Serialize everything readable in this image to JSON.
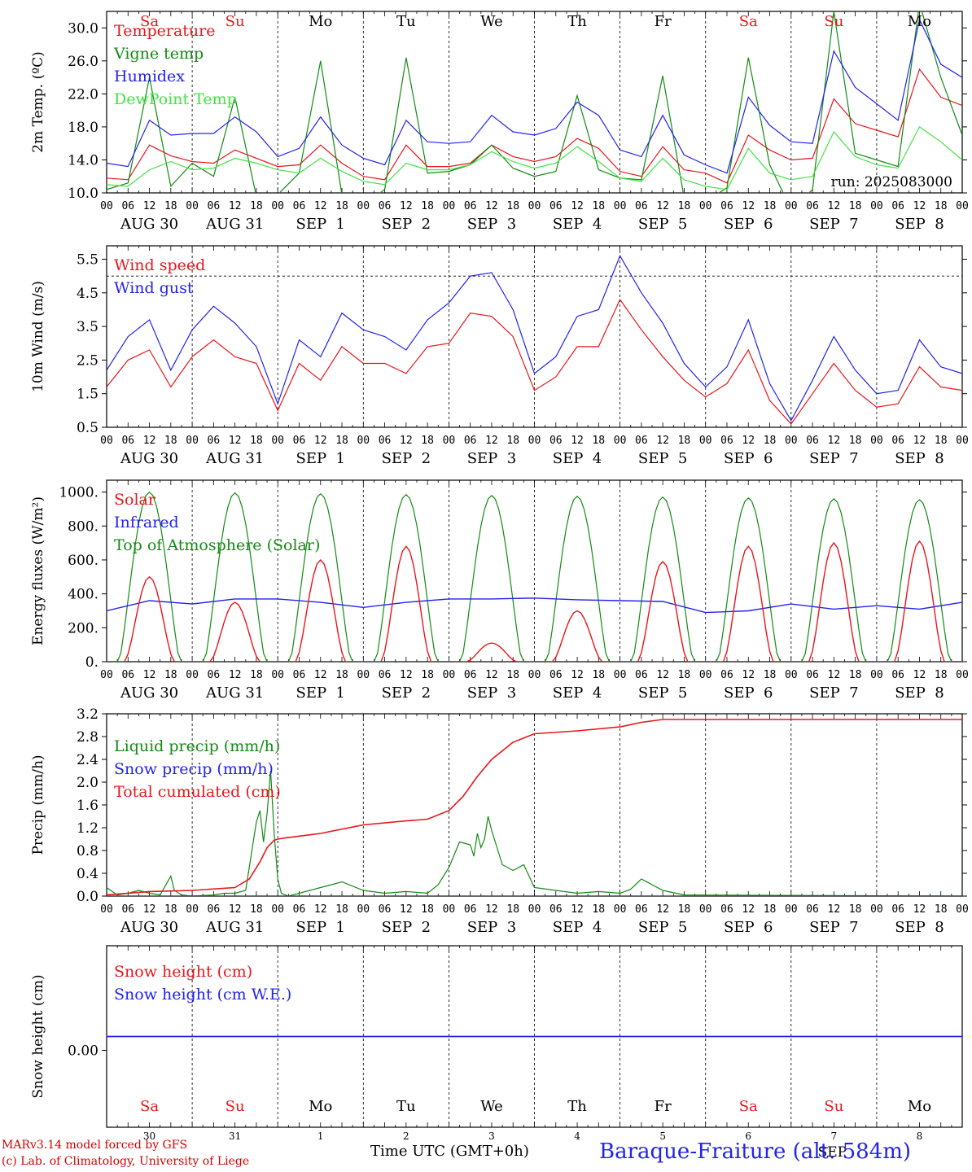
{
  "chart_data": [
    {
      "type": "line",
      "ylabel": "2m Temp. (ºC)",
      "ylim": [
        10,
        32
      ],
      "yticks": [
        "10.0",
        "14.0",
        "18.0",
        "22.0",
        "26.0",
        "30.0"
      ],
      "run_label": "run: 2025083000",
      "weekdays": [
        {
          "label": "Sa",
          "color": "#e8161b"
        },
        {
          "label": "Su",
          "color": "#e8161b"
        },
        {
          "label": "Mo",
          "color": "#000000"
        },
        {
          "label": "Tu",
          "color": "#000000"
        },
        {
          "label": "We",
          "color": "#000000"
        },
        {
          "label": "Th",
          "color": "#000000"
        },
        {
          "label": "Fr",
          "color": "#000000"
        },
        {
          "label": "Sa",
          "color": "#e8161b"
        },
        {
          "label": "Su",
          "color": "#e8161b"
        },
        {
          "label": "Mo",
          "color": "#000000"
        }
      ],
      "series": [
        {
          "name": "Temperature",
          "color": "#e8161b",
          "x": [
            0,
            6,
            12,
            18,
            24,
            30,
            36,
            42,
            48,
            54,
            60,
            66,
            72,
            78,
            84,
            90,
            96,
            102,
            108,
            114,
            120,
            126,
            132,
            138,
            144,
            150,
            156,
            162,
            168,
            174,
            180,
            186,
            192,
            198,
            204,
            210,
            216,
            222,
            228,
            234,
            240
          ],
          "values": [
            11.8,
            11.6,
            15.8,
            14.5,
            13.8,
            13.6,
            15.2,
            14.2,
            13.2,
            13.4,
            15.8,
            13.6,
            12.0,
            11.6,
            15.8,
            13.2,
            13.2,
            13.6,
            15.8,
            14.4,
            13.8,
            14.4,
            16.6,
            15.4,
            12.6,
            12.0,
            15.6,
            12.8,
            12.4,
            11.2,
            17.0,
            15.2,
            14.0,
            14.2,
            21.4,
            18.4,
            17.6,
            16.8,
            25.0,
            21.6,
            20.6
          ]
        },
        {
          "name": "Vigne temp",
          "color": "#138a13",
          "x": [
            0,
            6,
            12,
            18,
            24,
            30,
            36,
            42,
            48,
            54,
            60,
            66,
            72,
            78,
            84,
            90,
            96,
            102,
            108,
            114,
            120,
            126,
            132,
            138,
            144,
            150,
            156,
            162,
            168,
            174,
            180,
            186,
            192,
            198,
            204,
            210,
            216,
            222,
            228,
            234,
            240
          ],
          "values": [
            10.4,
            11.2,
            24.0,
            10.8,
            13.6,
            12.0,
            21.6,
            9.6,
            9.8,
            12.4,
            26.0,
            9.8,
            8.6,
            10.4,
            26.4,
            12.4,
            12.6,
            13.4,
            15.8,
            13.0,
            12.0,
            12.6,
            21.8,
            12.8,
            11.8,
            11.6,
            24.2,
            9.4,
            9.0,
            10.6,
            26.4,
            13.4,
            8.0,
            10.4,
            32.0,
            14.8,
            14.0,
            13.2,
            33.0,
            24.0,
            17.0
          ]
        },
        {
          "name": "Humidex",
          "color": "#2323ee",
          "x": [
            0,
            6,
            12,
            18,
            24,
            30,
            36,
            42,
            48,
            54,
            60,
            66,
            72,
            78,
            84,
            90,
            96,
            102,
            108,
            114,
            120,
            126,
            132,
            138,
            144,
            150,
            156,
            162,
            168,
            174,
            180,
            186,
            192,
            198,
            204,
            210,
            216,
            222,
            228,
            234,
            240
          ],
          "values": [
            13.6,
            13.2,
            18.8,
            17.0,
            17.2,
            17.2,
            19.2,
            17.4,
            14.4,
            15.4,
            19.2,
            15.8,
            14.2,
            13.4,
            18.8,
            16.2,
            16.0,
            16.2,
            19.4,
            17.4,
            17.0,
            17.8,
            21.0,
            19.4,
            15.2,
            14.4,
            19.4,
            14.6,
            13.4,
            12.4,
            21.6,
            18.2,
            16.2,
            16.0,
            27.2,
            22.8,
            20.8,
            18.8,
            31.0,
            25.6,
            24.0
          ]
        },
        {
          "name": "DewPoint Temp",
          "color": "#42e342",
          "x": [
            0,
            6,
            12,
            18,
            24,
            30,
            36,
            42,
            48,
            54,
            60,
            66,
            72,
            78,
            84,
            90,
            96,
            102,
            108,
            114,
            120,
            126,
            132,
            138,
            144,
            150,
            156,
            162,
            168,
            174,
            180,
            186,
            192,
            198,
            204,
            210,
            216,
            222,
            228,
            234,
            240
          ],
          "values": [
            11.0,
            10.8,
            12.8,
            13.8,
            12.8,
            13.0,
            14.2,
            13.6,
            12.8,
            12.4,
            14.2,
            12.6,
            11.4,
            11.0,
            13.6,
            12.8,
            12.8,
            13.4,
            15.0,
            13.8,
            13.0,
            13.6,
            15.6,
            13.8,
            11.8,
            11.4,
            14.2,
            11.6,
            10.8,
            10.4,
            15.4,
            12.4,
            11.6,
            12.0,
            17.4,
            14.4,
            13.4,
            13.0,
            18.0,
            16.2,
            14.0
          ]
        }
      ]
    },
    {
      "type": "line",
      "ylabel": "10m Wind (m/s)",
      "ylim": [
        0.5,
        5.9
      ],
      "yticks": [
        "0.5",
        "1.5",
        "2.5",
        "3.5",
        "4.5",
        "5.5"
      ],
      "ref_y": 5.0,
      "series": [
        {
          "name": "Wind speed",
          "color": "#e8161b",
          "x": [
            0,
            6,
            12,
            18,
            24,
            30,
            36,
            42,
            48,
            54,
            60,
            66,
            72,
            78,
            84,
            90,
            96,
            102,
            108,
            114,
            120,
            126,
            132,
            138,
            144,
            150,
            156,
            162,
            168,
            174,
            180,
            186,
            192,
            198,
            204,
            210,
            216,
            222,
            228,
            234,
            240
          ],
          "values": [
            1.7,
            2.5,
            2.8,
            1.7,
            2.6,
            3.1,
            2.6,
            2.4,
            1.0,
            2.4,
            1.9,
            2.9,
            2.4,
            2.4,
            2.1,
            2.9,
            3.0,
            3.9,
            3.8,
            3.2,
            1.6,
            2.0,
            2.9,
            2.9,
            4.3,
            3.4,
            2.6,
            1.9,
            1.4,
            1.8,
            2.8,
            1.3,
            0.6,
            1.5,
            2.4,
            1.6,
            1.1,
            1.2,
            2.3,
            1.7,
            1.6
          ]
        },
        {
          "name": "Wind gust",
          "color": "#2323ee",
          "x": [
            0,
            6,
            12,
            18,
            24,
            30,
            36,
            42,
            48,
            54,
            60,
            66,
            72,
            78,
            84,
            90,
            96,
            102,
            108,
            114,
            120,
            126,
            132,
            138,
            144,
            150,
            156,
            162,
            168,
            174,
            180,
            186,
            192,
            198,
            204,
            210,
            216,
            222,
            228,
            234,
            240
          ],
          "values": [
            2.2,
            3.2,
            3.7,
            2.2,
            3.4,
            4.1,
            3.6,
            2.9,
            1.2,
            3.1,
            2.6,
            3.9,
            3.4,
            3.2,
            2.8,
            3.7,
            4.2,
            5.0,
            5.1,
            4.0,
            2.1,
            2.6,
            3.8,
            4.0,
            5.6,
            4.5,
            3.6,
            2.4,
            1.7,
            2.3,
            3.7,
            1.8,
            0.7,
            1.9,
            3.2,
            2.2,
            1.5,
            1.6,
            3.1,
            2.3,
            2.1
          ]
        }
      ]
    },
    {
      "type": "line",
      "ylabel": "Energy fluxes (W/m²)",
      "ylim": [
        0,
        1070
      ],
      "yticks": [
        "0.",
        "200.",
        "400.",
        "600.",
        "800.",
        "1000."
      ],
      "series": [
        {
          "name": "Solar",
          "color": "#e8161b"
        },
        {
          "name": "Infrared",
          "color": "#2323ee"
        },
        {
          "name": "Top of Atmosphere (Solar)",
          "color": "#138a13"
        }
      ],
      "solar_day_peaks": [
        500,
        350,
        600,
        680,
        110,
        300,
        590,
        680,
        700,
        710
      ],
      "toa_day_peaks": [
        1000,
        995,
        990,
        985,
        980,
        975,
        970,
        965,
        960,
        955
      ],
      "infrared_x": [
        0,
        12,
        24,
        36,
        48,
        60,
        72,
        84,
        96,
        108,
        120,
        132,
        144,
        156,
        168,
        180,
        192,
        204,
        216,
        228,
        240
      ],
      "infrared_values": [
        300,
        360,
        340,
        370,
        370,
        350,
        320,
        350,
        370,
        370,
        375,
        365,
        360,
        355,
        290,
        300,
        340,
        310,
        330,
        310,
        350
      ]
    },
    {
      "type": "line",
      "ylabel": "Precip (mm/h)",
      "ylim": [
        0,
        3.2
      ],
      "yticks": [
        "0.0",
        "0.4",
        "0.8",
        "1.2",
        "1.6",
        "2.0",
        "2.4",
        "2.8",
        "3.2"
      ],
      "series": [
        {
          "name": "Liquid precip (mm/h)",
          "color": "#138a13",
          "x": [
            0,
            3,
            6,
            9,
            12,
            15,
            18,
            19,
            21,
            24,
            30,
            33,
            36,
            39,
            42,
            43,
            44,
            45,
            46,
            47,
            48,
            49,
            51,
            54,
            60,
            66,
            72,
            78,
            84,
            90,
            93,
            96,
            99,
            102,
            103,
            104,
            105,
            106,
            107,
            108,
            111,
            114,
            117,
            120,
            126,
            132,
            138,
            144,
            147,
            150,
            156,
            162,
            240
          ],
          "values": [
            0.15,
            0.02,
            0.05,
            0.1,
            0.05,
            0.02,
            0.35,
            0.1,
            0.02,
            0.0,
            0.02,
            0.05,
            0.05,
            0.1,
            1.3,
            1.5,
            0.95,
            1.45,
            2.2,
            1.1,
            0.3,
            0.05,
            0.0,
            0.05,
            0.15,
            0.25,
            0.1,
            0.05,
            0.08,
            0.05,
            0.2,
            0.5,
            0.95,
            0.9,
            0.7,
            1.1,
            0.85,
            1.0,
            1.4,
            1.15,
            0.55,
            0.45,
            0.55,
            0.15,
            0.1,
            0.05,
            0.08,
            0.05,
            0.12,
            0.3,
            0.1,
            0.02,
            0.0
          ]
        },
        {
          "name": "Snow precip (mm/h)",
          "color": "#2323ee",
          "x": [
            0,
            240
          ],
          "values": [
            0,
            0
          ]
        },
        {
          "name": "Total cumulated (cm)",
          "color": "#e8161b",
          "x": [
            0,
            12,
            24,
            36,
            40,
            43,
            45,
            47,
            48,
            50,
            60,
            72,
            84,
            90,
            96,
            100,
            104,
            108,
            112,
            114,
            120,
            132,
            144,
            150,
            156,
            162,
            168,
            240
          ],
          "values": [
            0.02,
            0.08,
            0.1,
            0.15,
            0.3,
            0.6,
            0.85,
            0.98,
            1.0,
            1.02,
            1.1,
            1.25,
            1.32,
            1.35,
            1.5,
            1.75,
            2.1,
            2.4,
            2.6,
            2.7,
            2.85,
            2.9,
            2.97,
            3.05,
            3.1,
            3.1,
            3.1,
            3.1
          ]
        }
      ]
    },
    {
      "type": "line",
      "ylabel": "Snow height (cm)",
      "yticks": [
        "0.00"
      ],
      "series": [
        {
          "name": "Snow height (cm)",
          "color": "#e8161b",
          "x": [
            0,
            240
          ],
          "values": [
            0,
            0
          ]
        },
        {
          "name": "Snow height (cm W.E.)",
          "color": "#2323ee",
          "x": [
            0,
            240
          ],
          "values": [
            0,
            0
          ]
        }
      ]
    }
  ],
  "axis": {
    "hour_ticks": [
      "00",
      "06",
      "12",
      "18",
      "00",
      "06",
      "12",
      "18",
      "00",
      "06",
      "12",
      "18",
      "00",
      "06",
      "12",
      "18",
      "00",
      "06",
      "12",
      "18",
      "00",
      "06",
      "12",
      "18",
      "00",
      "06",
      "12",
      "18",
      "00",
      "06",
      "12",
      "18",
      "00",
      "06",
      "12",
      "18",
      "00",
      "06",
      "12",
      "18",
      "00"
    ],
    "date_labels": [
      "AUG 30",
      "AUG 31",
      "SEP  1",
      "SEP  2",
      "SEP  3",
      "SEP  4",
      "SEP  5",
      "SEP  6",
      "SEP  7",
      "SEP  8"
    ],
    "day_numbers": [
      "30",
      "31",
      "1",
      "2",
      "3",
      "4",
      "5",
      "6",
      "7",
      "8"
    ],
    "month_label": "SEP",
    "title": "Time UTC (GMT+0h)"
  },
  "footer": {
    "credit_line1": "MARv3.14 model forced by GFS",
    "credit_line2": "(c) Lab. of Climatology, University of Liege",
    "station": "Baraque-Fraiture (alt. 584m)"
  }
}
